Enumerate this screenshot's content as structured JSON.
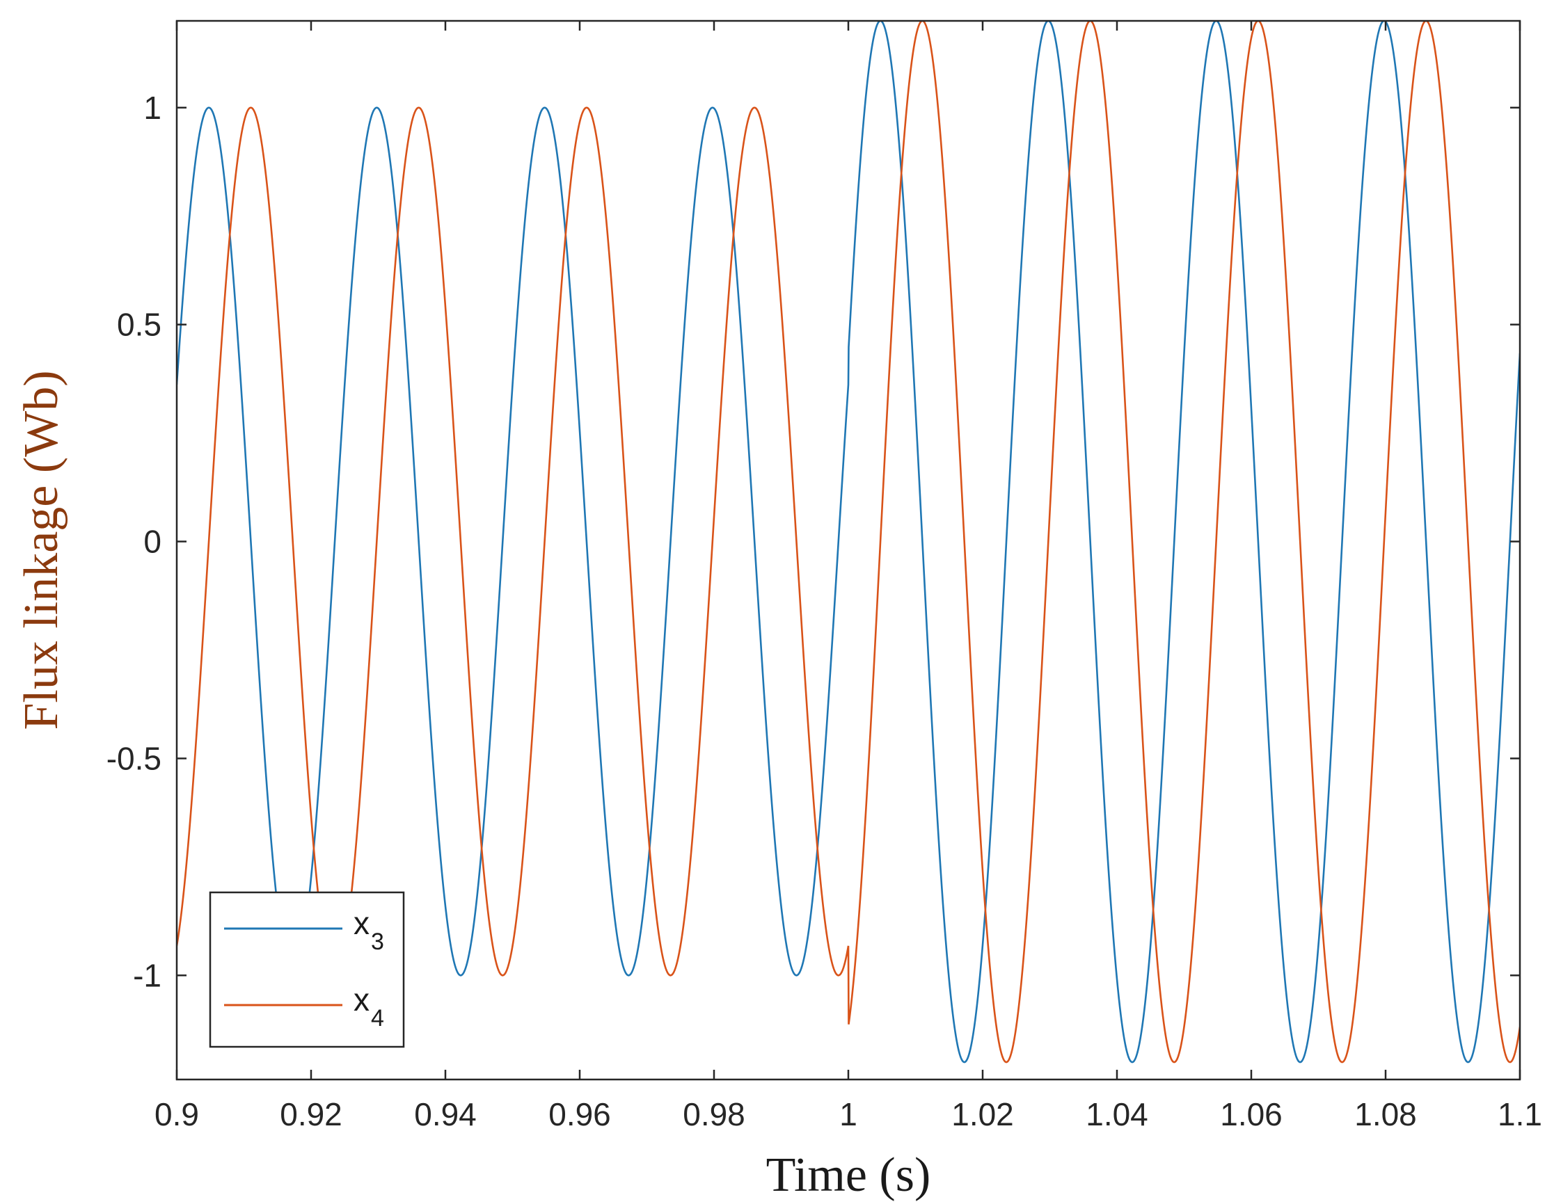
{
  "chart_data": {
    "type": "line",
    "xlabel": "Time (s)",
    "ylabel": "Flux linkage (Wb)",
    "xlim": [
      0.9,
      1.1
    ],
    "ylim": [
      -1.24,
      1.2
    ],
    "x_ticks": [
      0.9,
      0.92,
      0.94,
      0.96,
      0.98,
      1,
      1.02,
      1.04,
      1.06,
      1.08,
      1.1
    ],
    "x_tick_labels": [
      "0.9",
      "0.92",
      "0.94",
      "0.96",
      "0.98",
      "1",
      "1.02",
      "1.04",
      "1.06",
      "1.08",
      "1.1"
    ],
    "y_ticks": [
      1,
      0.5,
      0,
      -0.5,
      -1
    ],
    "y_tick_labels": [
      "1",
      "0.5",
      "0",
      "-0.5",
      "-1"
    ],
    "grid": false,
    "legend": {
      "placement": "bottom-left"
    },
    "series": [
      {
        "name": "x",
        "subscript": "3",
        "color": "#1f77b4",
        "model": "sinusoid",
        "segments": [
          {
            "t_start": 0.9,
            "t_end": 1.0,
            "amplitude": 1.0,
            "frequency_hz": 40,
            "phase_rad": 0.37
          },
          {
            "t_start": 1.0,
            "t_end": 1.1,
            "amplitude": 1.2,
            "frequency_hz": 40,
            "phase_rad": 0.37
          }
        ]
      },
      {
        "name": "x",
        "subscript": "4",
        "color": "#d95319",
        "model": "sinusoid",
        "segments": [
          {
            "t_start": 0.9,
            "t_end": 1.0,
            "amplitude": 1.0,
            "frequency_hz": 40,
            "phase_rad": -1.2
          },
          {
            "t_start": 1.0,
            "t_end": 1.1,
            "amplitude": 1.2,
            "frequency_hz": 40,
            "phase_rad": -1.2
          }
        ]
      }
    ],
    "colors": {
      "axis": "#262626",
      "ylabel": "#8B3A0E",
      "xlabel": "#1a1a1a"
    }
  }
}
